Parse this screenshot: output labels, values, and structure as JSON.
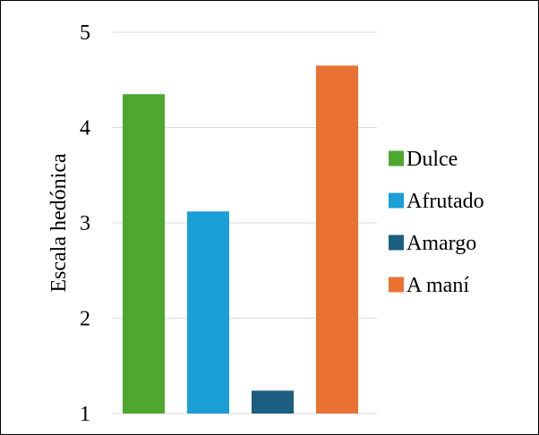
{
  "chart_data": {
    "type": "bar",
    "categories": [
      "Dulce",
      "Afrutado",
      "Amargo",
      "A maní"
    ],
    "values": [
      4.35,
      3.12,
      1.24,
      4.65
    ],
    "colors": [
      "#4ea72e",
      "#1a9fd6",
      "#1c5e80",
      "#e97132"
    ],
    "title": "",
    "xlabel": "",
    "ylabel": "Escala hedónica",
    "ylim": [
      1,
      5
    ],
    "yticks": [
      1,
      2,
      3,
      4,
      5
    ],
    "grid": true,
    "legend": {
      "placement": "right",
      "entries": [
        "Dulce",
        "Afrutado",
        "Amargo",
        "A maní"
      ]
    }
  }
}
